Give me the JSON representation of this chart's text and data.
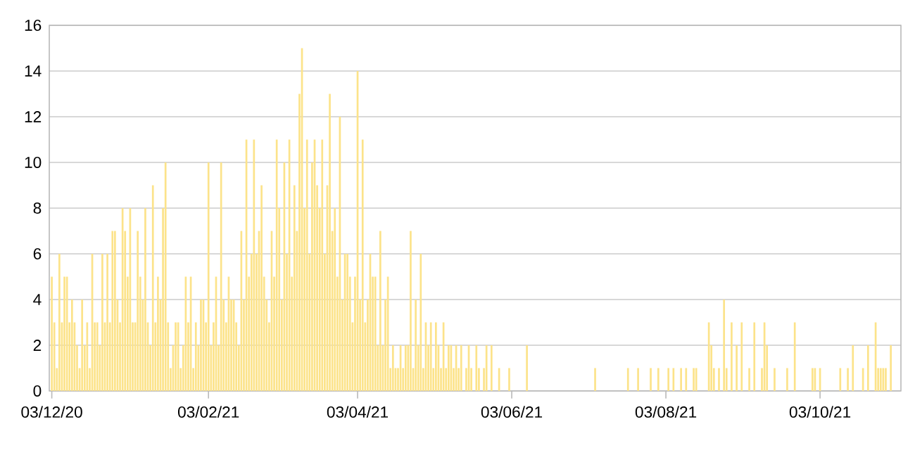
{
  "chart_data": {
    "type": "bar",
    "color": "#fce38a",
    "x": [
      "2020-12-03",
      "2020-12-04",
      "2020-12-05",
      "2020-12-06",
      "2020-12-07",
      "2020-12-08",
      "2020-12-09",
      "2020-12-10",
      "2020-12-11",
      "2020-12-12",
      "2020-12-13",
      "2020-12-14",
      "2020-12-15",
      "2020-12-16",
      "2020-12-17",
      "2020-12-18",
      "2020-12-19",
      "2020-12-20",
      "2020-12-21",
      "2020-12-22",
      "2020-12-23",
      "2020-12-24",
      "2020-12-25",
      "2020-12-26",
      "2020-12-27",
      "2020-12-28",
      "2020-12-29",
      "2020-12-30",
      "2020-12-31",
      "2021-01-01",
      "2021-01-02",
      "2021-01-03",
      "2021-01-04",
      "2021-01-05",
      "2021-01-06",
      "2021-01-07",
      "2021-01-08",
      "2021-01-09",
      "2021-01-10",
      "2021-01-11",
      "2021-01-12",
      "2021-01-13",
      "2021-01-14",
      "2021-01-15",
      "2021-01-16",
      "2021-01-17",
      "2021-01-18",
      "2021-01-19",
      "2021-01-20",
      "2021-01-21",
      "2021-01-22",
      "2021-01-23",
      "2021-01-24",
      "2021-01-25",
      "2021-01-26",
      "2021-01-27",
      "2021-01-28",
      "2021-01-29",
      "2021-01-30",
      "2021-01-31",
      "2021-02-01",
      "2021-02-02",
      "2021-02-03",
      "2021-02-04",
      "2021-02-05",
      "2021-02-06",
      "2021-02-07",
      "2021-02-08",
      "2021-02-09",
      "2021-02-10",
      "2021-02-11",
      "2021-02-12",
      "2021-02-13",
      "2021-02-14",
      "2021-02-15",
      "2021-02-16",
      "2021-02-17",
      "2021-02-18",
      "2021-02-19",
      "2021-02-20",
      "2021-02-21",
      "2021-02-22",
      "2021-02-23",
      "2021-02-24",
      "2021-02-25",
      "2021-02-26",
      "2021-02-27",
      "2021-02-28",
      "2021-03-01",
      "2021-03-02",
      "2021-03-03",
      "2021-03-04",
      "2021-03-05",
      "2021-03-06",
      "2021-03-07",
      "2021-03-08",
      "2021-03-09",
      "2021-03-10",
      "2021-03-11",
      "2021-03-12",
      "2021-03-13",
      "2021-03-14",
      "2021-03-15",
      "2021-03-16",
      "2021-03-17",
      "2021-03-18",
      "2021-03-19",
      "2021-03-20",
      "2021-03-21",
      "2021-03-22",
      "2021-03-23",
      "2021-03-24",
      "2021-03-25",
      "2021-03-26",
      "2021-03-27",
      "2021-03-28",
      "2021-03-29",
      "2021-03-30",
      "2021-03-31",
      "2021-04-01",
      "2021-04-02",
      "2021-04-03",
      "2021-04-04",
      "2021-04-05",
      "2021-04-06",
      "2021-04-07",
      "2021-04-08",
      "2021-04-09",
      "2021-04-10",
      "2021-04-11",
      "2021-04-12",
      "2021-04-13",
      "2021-04-14",
      "2021-04-15",
      "2021-04-16",
      "2021-04-17",
      "2021-04-18",
      "2021-04-19",
      "2021-04-20",
      "2021-04-21",
      "2021-04-22",
      "2021-04-23",
      "2021-04-24",
      "2021-04-25",
      "2021-04-26",
      "2021-04-27",
      "2021-04-28",
      "2021-04-29",
      "2021-04-30",
      "2021-05-01",
      "2021-05-02",
      "2021-05-03",
      "2021-05-04",
      "2021-05-05",
      "2021-05-06",
      "2021-05-07",
      "2021-05-08",
      "2021-05-09",
      "2021-05-10",
      "2021-05-11",
      "2021-05-12",
      "2021-05-13",
      "2021-05-14",
      "2021-05-16",
      "2021-05-17",
      "2021-05-18",
      "2021-05-20",
      "2021-05-21",
      "2021-05-23",
      "2021-05-24",
      "2021-05-26",
      "2021-05-29",
      "2021-06-02",
      "2021-06-09",
      "2021-07-06",
      "2021-07-19",
      "2021-07-23",
      "2021-07-28",
      "2021-07-31",
      "2021-08-04",
      "2021-08-06",
      "2021-08-09",
      "2021-08-11",
      "2021-08-14",
      "2021-08-15",
      "2021-08-20",
      "2021-08-21",
      "2021-08-22",
      "2021-08-24",
      "2021-08-26",
      "2021-08-27",
      "2021-08-29",
      "2021-08-31",
      "2021-09-02",
      "2021-09-05",
      "2021-09-07",
      "2021-09-10",
      "2021-09-11",
      "2021-09-12",
      "2021-09-15",
      "2021-09-20",
      "2021-09-23",
      "2021-09-30",
      "2021-10-01",
      "2021-10-03",
      "2021-10-11",
      "2021-10-14",
      "2021-10-16",
      "2021-10-20",
      "2021-10-22",
      "2021-10-25",
      "2021-10-26",
      "2021-10-27",
      "2021-10-28",
      "2021-10-29",
      "2021-10-31"
    ],
    "values": [
      5,
      3,
      1,
      6,
      3,
      5,
      5,
      3,
      4,
      3,
      2,
      1,
      4,
      2,
      3,
      1,
      6,
      3,
      3,
      2,
      6,
      3,
      6,
      3,
      7,
      7,
      4,
      3,
      8,
      7,
      5,
      8,
      3,
      3,
      7,
      5,
      4,
      8,
      3,
      2,
      9,
      3,
      5,
      4,
      8,
      10,
      3,
      1,
      2,
      3,
      3,
      1,
      2,
      5,
      3,
      5,
      1,
      3,
      2,
      4,
      4,
      3,
      10,
      2,
      3,
      5,
      2,
      10,
      4,
      3,
      5,
      4,
      4,
      3,
      2,
      7,
      4,
      11,
      5,
      6,
      11,
      6,
      7,
      9,
      5,
      4,
      3,
      7,
      5,
      11,
      8,
      4,
      10,
      6,
      11,
      5,
      9,
      7,
      13,
      15,
      8,
      11,
      6,
      10,
      11,
      9,
      8,
      11,
      6,
      9,
      13,
      7,
      8,
      5,
      12,
      4,
      6,
      6,
      5,
      3,
      5,
      14,
      4,
      11,
      3,
      4,
      6,
      5,
      5,
      2,
      7,
      2,
      4,
      5,
      1,
      2,
      1,
      1,
      2,
      1,
      2,
      2,
      7,
      1,
      4,
      2,
      6,
      1,
      3,
      2,
      3,
      1,
      3,
      2,
      1,
      3,
      1,
      2,
      2,
      1,
      2,
      1,
      2,
      1,
      2,
      1,
      2,
      1,
      1,
      2,
      2,
      1,
      1,
      2,
      1,
      1,
      1,
      1,
      1,
      1,
      1,
      1,
      1,
      1,
      1,
      3,
      2,
      1,
      1,
      4,
      1,
      3,
      2,
      3,
      1,
      3,
      1,
      3,
      2,
      1,
      1,
      3,
      1,
      1,
      1,
      1,
      1,
      2,
      1,
      2,
      3,
      1,
      1,
      1,
      1,
      2
    ],
    "xlim": [
      "2020-12-02",
      "2021-11-04"
    ],
    "xticks": [
      {
        "value": "2020-12-03",
        "label": "03/12/20"
      },
      {
        "value": "2021-02-03",
        "label": "03/02/21"
      },
      {
        "value": "2021-04-03",
        "label": "03/04/21"
      },
      {
        "value": "2021-06-03",
        "label": "03/06/21"
      },
      {
        "value": "2021-08-03",
        "label": "03/08/21"
      },
      {
        "value": "2021-10-03",
        "label": "03/10/21"
      }
    ],
    "ylim": [
      0,
      16
    ],
    "yticks": [
      0,
      2,
      4,
      6,
      8,
      10,
      12,
      14,
      16
    ],
    "grid": "y"
  }
}
